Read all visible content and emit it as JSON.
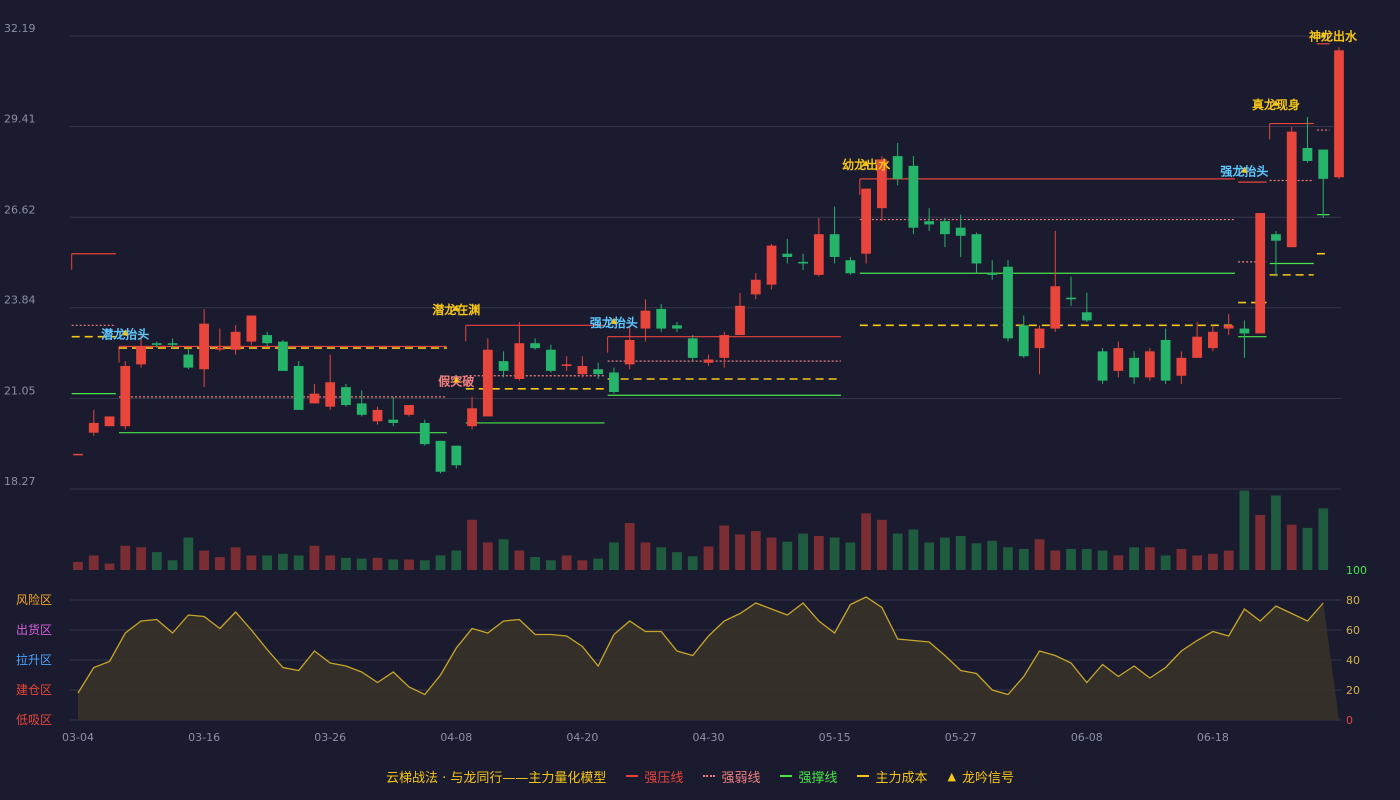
{
  "chart_data": {
    "type": "candlestick",
    "title": "",
    "colors": {
      "up": "#e8453c",
      "down": "#26b36a",
      "grid": "#34364a",
      "axis_text": "#8a8fa8",
      "bg": "#1a1b2e",
      "resist": "#e8453c",
      "weak": "#f08080",
      "support": "#4ae34a",
      "cost": "#f5c518",
      "osc": "#c8a52a"
    },
    "y_ticks": [
      "32.19",
      "29.41",
      "26.62",
      "23.84",
      "21.05",
      "18.27"
    ],
    "ylim": [
      18.27,
      32.19
    ],
    "x_tick_labels": [
      {
        "i": 0,
        "label": "03-04"
      },
      {
        "i": 8,
        "label": "03-16"
      },
      {
        "i": 16,
        "label": "03-26"
      },
      {
        "i": 24,
        "label": "04-08"
      },
      {
        "i": 32,
        "label": "04-20"
      },
      {
        "i": 40,
        "label": "04-30"
      },
      {
        "i": 48,
        "label": "05-15"
      },
      {
        "i": 56,
        "label": "05-27"
      },
      {
        "i": 64,
        "label": "06-08"
      },
      {
        "i": 72,
        "label": "06-18"
      }
    ],
    "candles": [
      [
        19.35,
        19.35,
        19.35,
        19.35
      ],
      [
        20.0,
        20.3,
        20.7,
        19.9
      ],
      [
        20.2,
        20.5,
        20.5,
        20.2
      ],
      [
        20.2,
        22.05,
        22.2,
        20.1
      ],
      [
        22.1,
        22.65,
        23.0,
        22.0
      ],
      [
        22.75,
        22.7,
        22.8,
        22.6
      ],
      [
        22.75,
        22.7,
        22.9,
        22.6
      ],
      [
        22.4,
        22.0,
        22.6,
        21.95
      ],
      [
        21.95,
        23.35,
        23.8,
        21.4
      ],
      [
        22.6,
        22.6,
        23.2,
        22.5
      ],
      [
        22.55,
        23.1,
        23.3,
        22.4
      ],
      [
        22.8,
        23.6,
        23.6,
        22.7
      ],
      [
        23.0,
        22.75,
        23.1,
        22.65
      ],
      [
        22.8,
        21.9,
        22.85,
        21.9
      ],
      [
        22.05,
        20.7,
        22.2,
        20.7
      ],
      [
        20.9,
        21.2,
        21.5,
        20.9
      ],
      [
        20.8,
        21.55,
        22.4,
        20.7
      ],
      [
        21.4,
        20.85,
        21.5,
        20.8
      ],
      [
        20.9,
        20.55,
        21.3,
        20.5
      ],
      [
        20.35,
        20.7,
        20.8,
        20.25
      ],
      [
        20.4,
        20.3,
        21.1,
        20.2
      ],
      [
        20.55,
        20.85,
        20.85,
        20.5
      ],
      [
        20.3,
        19.65,
        20.4,
        19.6
      ],
      [
        19.75,
        18.8,
        19.75,
        18.75
      ],
      [
        19.6,
        19.0,
        19.6,
        18.9
      ],
      [
        20.2,
        20.75,
        21.1,
        20.1
      ],
      [
        20.5,
        22.55,
        22.9,
        20.5
      ],
      [
        22.2,
        21.9,
        22.5,
        21.7
      ],
      [
        21.65,
        22.75,
        23.4,
        21.6
      ],
      [
        22.75,
        22.6,
        22.9,
        22.55
      ],
      [
        22.55,
        21.9,
        22.7,
        21.85
      ],
      [
        22.05,
        22.1,
        22.35,
        21.9
      ],
      [
        21.8,
        22.05,
        22.35,
        21.7
      ],
      [
        21.95,
        21.8,
        22.15,
        21.65
      ],
      [
        21.85,
        21.25,
        22.0,
        21.2
      ],
      [
        22.1,
        22.85,
        23.3,
        21.95
      ],
      [
        23.2,
        23.75,
        24.1,
        22.8
      ],
      [
        23.8,
        23.2,
        23.95,
        23.1
      ],
      [
        23.3,
        23.2,
        23.4,
        23.1
      ],
      [
        22.9,
        22.3,
        23.0,
        22.2
      ],
      [
        22.15,
        22.25,
        22.4,
        22.05
      ],
      [
        22.3,
        23.0,
        23.1,
        22.0
      ],
      [
        23.0,
        23.9,
        24.3,
        23.0
      ],
      [
        24.25,
        24.7,
        24.9,
        24.1
      ],
      [
        24.55,
        25.75,
        25.8,
        24.4
      ],
      [
        25.5,
        25.4,
        25.95,
        25.2
      ],
      [
        25.25,
        25.2,
        25.5,
        25.0
      ],
      [
        24.85,
        26.1,
        26.6,
        24.8
      ],
      [
        26.1,
        25.4,
        26.95,
        25.2
      ],
      [
        25.3,
        24.9,
        25.4,
        24.85
      ],
      [
        25.5,
        27.5,
        27.5,
        25.2
      ],
      [
        26.9,
        28.4,
        28.5,
        26.5
      ],
      [
        28.5,
        27.8,
        28.9,
        27.6
      ],
      [
        28.2,
        26.3,
        28.5,
        26.1
      ],
      [
        26.5,
        26.4,
        26.9,
        26.2
      ],
      [
        26.5,
        26.1,
        26.6,
        25.7
      ],
      [
        26.3,
        26.05,
        26.7,
        25.4
      ],
      [
        26.1,
        25.2,
        26.15,
        24.9
      ],
      [
        24.9,
        24.85,
        25.3,
        24.7
      ],
      [
        25.1,
        22.9,
        25.3,
        22.8
      ],
      [
        23.3,
        22.35,
        23.6,
        22.3
      ],
      [
        22.6,
        23.2,
        23.3,
        21.8
      ],
      [
        23.2,
        24.5,
        26.2,
        23.1
      ],
      [
        24.15,
        24.1,
        24.8,
        23.9
      ],
      [
        23.7,
        23.45,
        24.3,
        23.4
      ],
      [
        22.5,
        21.6,
        22.6,
        21.5
      ],
      [
        21.9,
        22.6,
        22.8,
        21.7
      ],
      [
        22.3,
        21.7,
        22.5,
        21.5
      ],
      [
        21.7,
        22.5,
        22.6,
        21.6
      ],
      [
        22.85,
        21.6,
        23.2,
        21.5
      ],
      [
        21.75,
        22.3,
        22.5,
        21.5
      ],
      [
        22.3,
        22.95,
        23.4,
        22.3
      ],
      [
        22.6,
        23.1,
        23.3,
        22.5
      ],
      [
        23.2,
        23.3,
        23.65,
        23.0
      ],
      [
        23.2,
        23.05,
        23.45,
        22.3
      ],
      [
        23.05,
        26.75,
        26.75,
        23.05
      ],
      [
        26.1,
        25.9,
        26.2,
        24.8
      ],
      [
        25.7,
        29.25,
        29.4,
        25.7
      ],
      [
        28.75,
        28.35,
        29.7,
        28.3
      ],
      [
        28.7,
        27.8,
        28.7,
        26.6
      ],
      [
        27.85,
        31.75,
        31.85,
        27.8
      ]
    ],
    "volumes": [
      10,
      18,
      8,
      30,
      28,
      22,
      12,
      40,
      24,
      16,
      28,
      18,
      18,
      20,
      18,
      30,
      18,
      15,
      14,
      15,
      13,
      13,
      12,
      18,
      24,
      62,
      34,
      38,
      24,
      16,
      12,
      18,
      12,
      14,
      34,
      58,
      34,
      28,
      22,
      17,
      29,
      55,
      44,
      48,
      40,
      35,
      45,
      42,
      40,
      34,
      70,
      62,
      45,
      50,
      34,
      40,
      42,
      33,
      36,
      28,
      26,
      38,
      24,
      26,
      26,
      24,
      18,
      28,
      28,
      18,
      26,
      18,
      20,
      24,
      98,
      68,
      92,
      56,
      52,
      76
    ],
    "volume_max_label": "100",
    "oscillator": {
      "y_ticks": [
        "80",
        "60",
        "40",
        "20",
        "0"
      ],
      "zones": [
        "风险区",
        "出货区",
        "拉升区",
        "建仓区",
        "低吸区"
      ],
      "values": [
        18,
        35,
        39,
        58,
        66,
        67,
        58,
        70,
        69,
        61,
        72,
        60,
        47,
        35,
        33,
        46,
        38,
        36,
        32,
        25,
        32,
        22,
        17,
        30,
        48,
        61,
        58,
        66,
        67,
        57,
        57,
        56,
        49,
        36,
        57,
        66,
        59,
        59,
        46,
        43,
        56,
        66,
        71,
        78,
        74,
        70,
        78,
        66,
        58,
        77,
        82,
        75,
        54,
        53,
        52,
        43,
        33,
        31,
        20,
        17,
        29,
        46,
        43,
        38,
        25,
        37,
        29,
        36,
        28,
        35,
        46,
        53,
        59,
        56,
        74,
        66,
        76,
        71,
        66,
        78
      ]
    },
    "levels": [
      {
        "type": "resist",
        "from": 0,
        "to": 2,
        "value": 25.5
      },
      {
        "type": "weak",
        "from": 0,
        "to": 2,
        "value": 23.3
      },
      {
        "type": "cost",
        "from": 0,
        "to": 2,
        "value": 22.95
      },
      {
        "type": "support",
        "from": 0,
        "to": 2,
        "value": 21.2
      },
      {
        "type": "resist",
        "from": 3,
        "to": 23,
        "value": 22.65
      },
      {
        "type": "cost",
        "from": 3,
        "to": 23,
        "value": 22.6
      },
      {
        "type": "weak",
        "from": 3,
        "to": 23,
        "value": 21.1
      },
      {
        "type": "support",
        "from": 3,
        "to": 23,
        "value": 20.0
      },
      {
        "type": "resist",
        "from": 25,
        "to": 33,
        "value": 23.3
      },
      {
        "type": "cost",
        "from": 25,
        "to": 33,
        "value": 21.35
      },
      {
        "type": "weak",
        "from": 25,
        "to": 33,
        "value": 21.75
      },
      {
        "type": "support",
        "from": 25,
        "to": 33,
        "value": 20.3
      },
      {
        "type": "resist",
        "from": 34,
        "to": 48,
        "value": 22.95
      },
      {
        "type": "weak",
        "from": 34,
        "to": 48,
        "value": 22.2
      },
      {
        "type": "cost",
        "from": 34,
        "to": 48,
        "value": 21.65
      },
      {
        "type": "support",
        "from": 34,
        "to": 48,
        "value": 21.15
      },
      {
        "type": "resist",
        "from": 50,
        "to": 73,
        "value": 27.8
      },
      {
        "type": "weak",
        "from": 50,
        "to": 73,
        "value": 26.55
      },
      {
        "type": "support",
        "from": 50,
        "to": 73,
        "value": 24.9
      },
      {
        "type": "cost",
        "from": 50,
        "to": 73,
        "value": 23.3
      },
      {
        "type": "resist",
        "from": 74,
        "to": 75,
        "value": 27.7
      },
      {
        "type": "weak",
        "from": 74,
        "to": 75,
        "value": 25.25
      },
      {
        "type": "cost",
        "from": 74,
        "to": 75,
        "value": 24.0
      },
      {
        "type": "support",
        "from": 74,
        "to": 75,
        "value": 22.95
      },
      {
        "type": "resist",
        "from": 76,
        "to": 78,
        "value": 29.5
      },
      {
        "type": "weak",
        "from": 76,
        "to": 78,
        "value": 27.75
      },
      {
        "type": "support",
        "from": 76,
        "to": 78,
        "value": 25.2
      },
      {
        "type": "cost",
        "from": 76,
        "to": 78,
        "value": 24.85
      },
      {
        "type": "resist",
        "from": 79,
        "to": 79,
        "value": 31.95
      },
      {
        "type": "weak",
        "from": 79,
        "to": 79,
        "value": 29.3
      },
      {
        "type": "support",
        "from": 79,
        "to": 79,
        "value": 26.7
      },
      {
        "type": "cost",
        "from": 79,
        "to": 79,
        "value": 25.5
      }
    ],
    "signals": [
      {
        "i": 3,
        "label": "潜龙抬头",
        "color": "#5ec8ff",
        "value": 22.9
      },
      {
        "i": 24,
        "label": "潜龙在渊",
        "color": "#f5c518",
        "value": 23.65
      },
      {
        "i": 24,
        "label": "假突破",
        "color": "#f08080",
        "value": 21.45
      },
      {
        "i": 34,
        "label": "强龙抬头",
        "color": "#5ec8ff",
        "value": 23.25
      },
      {
        "i": 50,
        "label": "幼龙出水",
        "color": "#f5c518",
        "value": 28.1
      },
      {
        "i": 74,
        "label": "强龙抬头",
        "color": "#5ec8ff",
        "value": 27.9
      },
      {
        "i": 76,
        "label": "真龙现身",
        "color": "#f5c518",
        "value": 29.95
      },
      {
        "i": 79,
        "label": "神龙出水",
        "color": "#f5c518",
        "value": 32.05
      }
    ]
  },
  "legend": {
    "model_name": "云梯战法 · 与龙同行——主力量化模型",
    "items": [
      {
        "label": "强压线",
        "color": "#e8453c",
        "style": "solid"
      },
      {
        "label": "强弱线",
        "color": "#f08080",
        "style": "dotted"
      },
      {
        "label": "强撑线",
        "color": "#4ae34a",
        "style": "solid"
      },
      {
        "label": "主力成本",
        "color": "#f5c518",
        "style": "dashed"
      },
      {
        "label": "龙吟信号",
        "color": "#f5c518",
        "style": "triangle"
      }
    ]
  }
}
